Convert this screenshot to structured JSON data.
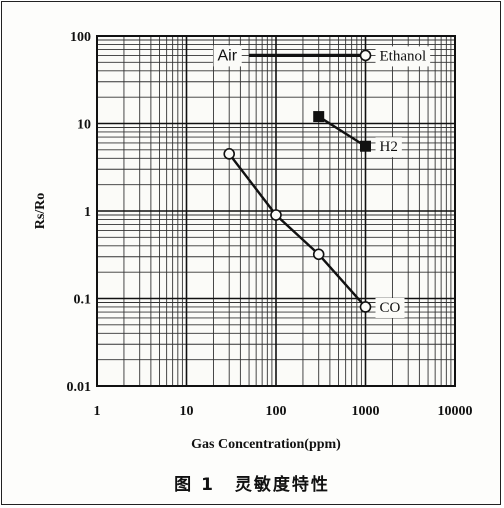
{
  "chart_data": {
    "type": "line",
    "x_scale": "log",
    "y_scale": "log",
    "xlim": [
      1,
      10000
    ],
    "ylim": [
      0.01,
      100
    ],
    "xlabel": "Gas Concentration(ppm)",
    "ylabel": "Rs/Ro",
    "xticks": [
      "1",
      "10",
      "100",
      "1000",
      "10000"
    ],
    "yticks": [
      "0.01",
      "0.1",
      "1",
      "10",
      "100"
    ],
    "grid": true,
    "series": [
      {
        "name": "Air",
        "marker": "none",
        "label_position": "left-end",
        "points": [
          [
            50,
            60
          ],
          [
            1000,
            60
          ]
        ]
      },
      {
        "name": "Ethanol",
        "marker": "open-circle",
        "label_position": "right-end",
        "points": [
          [
            1000,
            60
          ]
        ]
      },
      {
        "name": "H2",
        "marker": "filled-square",
        "label_position": "right-end",
        "points": [
          [
            300,
            12
          ],
          [
            1000,
            5.5
          ]
        ]
      },
      {
        "name": "CO",
        "marker": "open-circle",
        "label_position": "right-end",
        "points": [
          [
            30,
            4.5
          ],
          [
            100,
            0.9
          ],
          [
            300,
            0.32
          ],
          [
            1000,
            0.08
          ]
        ]
      }
    ]
  },
  "caption": {
    "figure_number": "图 1",
    "title": "灵敏度特性"
  }
}
